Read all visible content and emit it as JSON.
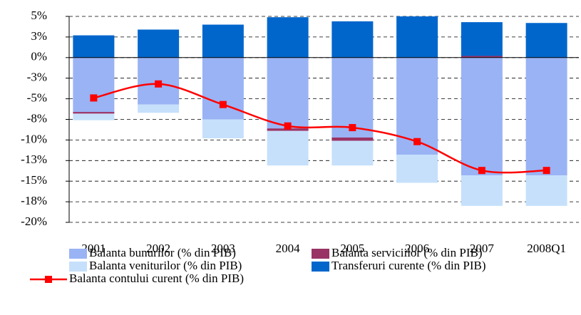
{
  "chart_data": {
    "type": "bar",
    "categories": [
      "2001",
      "2002",
      "2003",
      "2004",
      "2005",
      "2006",
      "2007",
      "2008Q1"
    ],
    "series": [
      {
        "name": "Balanta bunurilor (% din PIB)",
        "color": "#99b3f5",
        "values": [
          -6.6,
          -5.7,
          -7.5,
          -8.6,
          -9.7,
          -11.8,
          -14.3,
          -14.3
        ]
      },
      {
        "name": "Balanta serviciilor (% din PIB)",
        "color": "#993366",
        "values": [
          -0.2,
          0,
          0,
          -0.3,
          -0.4,
          0,
          0.2,
          0
        ]
      },
      {
        "name": "Balanta veniturilor (% din PIB)",
        "color": "#c6e0fb",
        "values": [
          -0.8,
          -1.0,
          -2.3,
          -4.2,
          -3.0,
          -3.4,
          -3.7,
          -3.7
        ]
      },
      {
        "name": "Transferuri curente (% din PIB)",
        "color": "#0066cc",
        "values": [
          2.7,
          3.4,
          4.0,
          4.9,
          4.4,
          5.0,
          4.1,
          4.2
        ]
      },
      {
        "name": "Balanta contului curent (% din PIB)",
        "color": "#ff0000",
        "type": "line",
        "values": [
          -4.9,
          -3.2,
          -5.7,
          -8.3,
          -8.5,
          -10.2,
          -13.7,
          -13.7
        ]
      }
    ],
    "ylim": [
      -20,
      5
    ],
    "yticks": [
      {
        "value": 5,
        "label": "5%"
      },
      {
        "value": 2.5,
        "label": "3%"
      },
      {
        "value": 0,
        "label": "0%"
      },
      {
        "value": -2.5,
        "label": "-3%"
      },
      {
        "value": -5,
        "label": "-5%"
      },
      {
        "value": -7.5,
        "label": "-8%"
      },
      {
        "value": -10,
        "label": "-10%"
      },
      {
        "value": -12.5,
        "label": "-13%"
      },
      {
        "value": -15,
        "label": "-15%"
      },
      {
        "value": -17.5,
        "label": "-18%"
      },
      {
        "value": -20,
        "label": "-20%"
      }
    ],
    "grid": true,
    "stacked": true
  }
}
